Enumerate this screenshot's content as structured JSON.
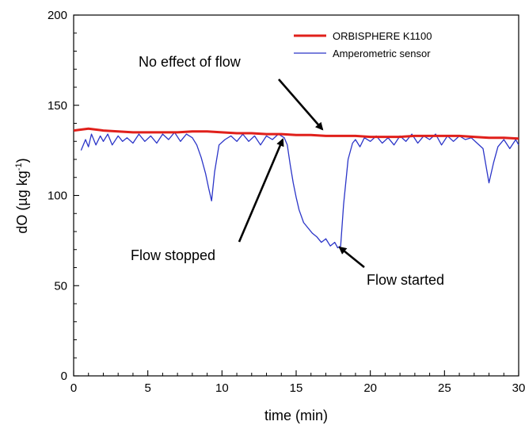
{
  "chart_data": {
    "type": "line",
    "xlabel": "time (min)",
    "ylabel_main": "dO (µg kg",
    "ylabel_exp": "-1",
    "ylabel_close": ")",
    "xlim": [
      0,
      30
    ],
    "ylim": [
      0,
      200
    ],
    "x_ticks": [
      0,
      5,
      10,
      15,
      20,
      25,
      30
    ],
    "x_tick_labels": [
      "0",
      "5",
      "10",
      "15",
      "20",
      "25",
      "30"
    ],
    "y_ticks": [
      0,
      50,
      100,
      150,
      200
    ],
    "y_tick_labels": [
      "0",
      "50",
      "100",
      "150",
      "200"
    ],
    "grid": false,
    "legend_position": "top-right",
    "series": [
      {
        "name": "ORBISPHERE K1100",
        "color": "#e0201b",
        "x": [
          0,
          1,
          2,
          3,
          4,
          5,
          6,
          7,
          8,
          9,
          10,
          11,
          12,
          13,
          14,
          15,
          16,
          17,
          18,
          19,
          20,
          21,
          22,
          23,
          24,
          25,
          26,
          27,
          28,
          29,
          30
        ],
        "y": [
          136,
          137,
          136,
          135.5,
          135,
          135,
          135,
          135,
          135.5,
          135.5,
          135,
          134.5,
          134.5,
          134,
          134,
          133.5,
          133.5,
          133,
          133,
          133,
          132.5,
          132.5,
          132.5,
          133,
          133,
          133,
          133,
          132.5,
          132,
          132,
          131.5
        ]
      },
      {
        "name": "Amperometric sensor",
        "color": "#2b35c8",
        "x": [
          0.5,
          0.8,
          1.0,
          1.2,
          1.5,
          1.8,
          2.0,
          2.3,
          2.6,
          3.0,
          3.3,
          3.6,
          4.0,
          4.4,
          4.8,
          5.2,
          5.6,
          6.0,
          6.4,
          6.8,
          7.2,
          7.6,
          8.0,
          8.3,
          8.6,
          8.9,
          9.1,
          9.3,
          9.5,
          9.8,
          10.2,
          10.6,
          11.0,
          11.4,
          11.8,
          12.2,
          12.6,
          13.0,
          13.4,
          13.8,
          14.2,
          14.4,
          14.6,
          14.8,
          15.0,
          15.2,
          15.5,
          15.8,
          16.1,
          16.4,
          16.7,
          17.0,
          17.3,
          17.6,
          17.8,
          18.0,
          18.2,
          18.5,
          18.8,
          19.0,
          19.3,
          19.6,
          20.0,
          20.4,
          20.8,
          21.2,
          21.6,
          22.0,
          22.4,
          22.8,
          23.2,
          23.6,
          24.0,
          24.4,
          24.8,
          25.2,
          25.6,
          26.0,
          26.4,
          26.8,
          27.2,
          27.6,
          28.0,
          28.3,
          28.6,
          29.0,
          29.4,
          29.8,
          30.0
        ],
        "y": [
          125,
          131,
          127,
          134,
          128,
          133,
          130,
          134,
          128,
          133,
          130,
          132,
          129,
          134,
          130,
          133,
          129,
          134,
          131,
          135,
          130,
          134,
          132,
          128,
          121,
          112,
          104,
          97,
          113,
          128,
          131,
          133,
          130,
          134,
          130,
          133,
          128,
          133,
          131,
          134,
          132,
          128,
          117,
          107,
          99,
          92,
          85,
          82,
          79,
          77,
          74,
          76,
          72,
          74,
          71,
          72,
          95,
          120,
          129,
          131,
          127,
          132,
          130,
          133,
          129,
          132,
          128,
          133,
          130,
          134,
          129,
          133,
          131,
          134,
          128,
          133,
          130,
          133,
          131,
          132,
          129,
          126,
          107,
          118,
          127,
          131,
          126,
          131,
          128
        ]
      }
    ],
    "annotations": [
      {
        "text": "No effect of flow",
        "arrow_to": [
          17.3,
          134
        ]
      },
      {
        "text": "Flow stopped",
        "arrow_to": [
          14.3,
          131
        ]
      },
      {
        "text": "Flow started",
        "arrow_to": [
          18.0,
          72
        ]
      }
    ]
  }
}
